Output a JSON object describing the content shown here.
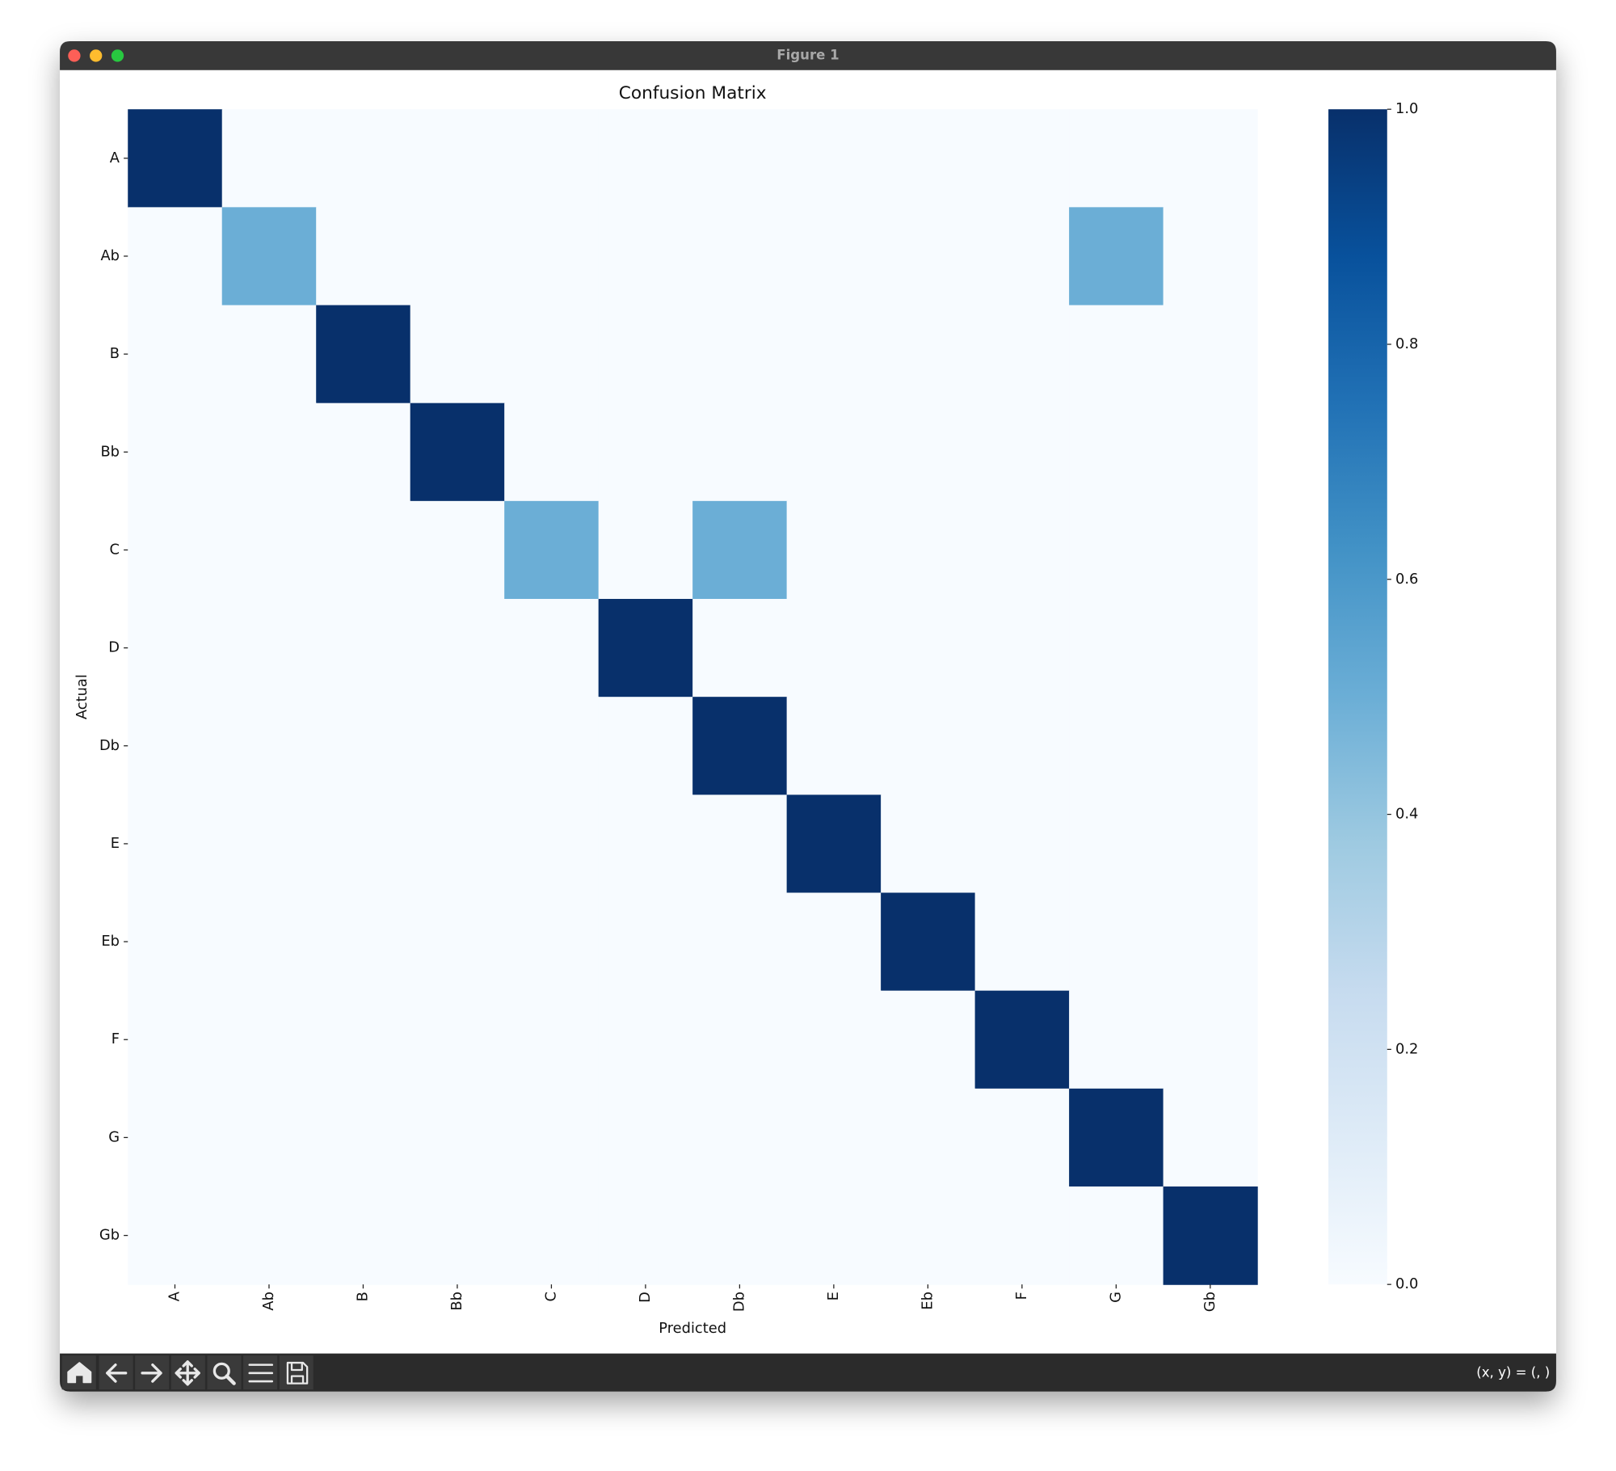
{
  "window": {
    "title": "Figure 1",
    "status": "(x, y) = (, )"
  },
  "chart_data": {
    "type": "heatmap",
    "title": "Confusion Matrix",
    "xlabel": "Predicted",
    "ylabel": "Actual",
    "x": [
      "A",
      "Ab",
      "B",
      "Bb",
      "C",
      "D",
      "Db",
      "E",
      "Eb",
      "F",
      "G",
      "Gb"
    ],
    "y": [
      "A",
      "Ab",
      "B",
      "Bb",
      "C",
      "D",
      "Db",
      "E",
      "Eb",
      "F",
      "G",
      "Gb"
    ],
    "values": [
      [
        1,
        0,
        0,
        0,
        0,
        0,
        0,
        0,
        0,
        0,
        0,
        0
      ],
      [
        0,
        0.5,
        0,
        0,
        0,
        0,
        0,
        0,
        0,
        0,
        0.5,
        0
      ],
      [
        0,
        0,
        1,
        0,
        0,
        0,
        0,
        0,
        0,
        0,
        0,
        0
      ],
      [
        0,
        0,
        0,
        1,
        0,
        0,
        0,
        0,
        0,
        0,
        0,
        0
      ],
      [
        0,
        0,
        0,
        0,
        0.5,
        0,
        0.5,
        0,
        0,
        0,
        0,
        0
      ],
      [
        0,
        0,
        0,
        0,
        0,
        1,
        0,
        0,
        0,
        0,
        0,
        0
      ],
      [
        0,
        0,
        0,
        0,
        0,
        0,
        1,
        0,
        0,
        0,
        0,
        0
      ],
      [
        0,
        0,
        0,
        0,
        0,
        0,
        0,
        1,
        0,
        0,
        0,
        0
      ],
      [
        0,
        0,
        0,
        0,
        0,
        0,
        0,
        0,
        1,
        0,
        0,
        0
      ],
      [
        0,
        0,
        0,
        0,
        0,
        0,
        0,
        0,
        0,
        1,
        0,
        0
      ],
      [
        0,
        0,
        0,
        0,
        0,
        0,
        0,
        0,
        0,
        0,
        1,
        0
      ],
      [
        0,
        0,
        0,
        0,
        0,
        0,
        0,
        0,
        0,
        0,
        0,
        1
      ]
    ],
    "colormap": "Blues",
    "clim": [
      0,
      1
    ],
    "cticks": [
      {
        "value": 0,
        "label": "0.0"
      },
      {
        "value": 0.2,
        "label": "0.2"
      },
      {
        "value": 0.4,
        "label": "0.4"
      },
      {
        "value": 0.6,
        "label": "0.6"
      },
      {
        "value": 0.8,
        "label": "0.8"
      },
      {
        "value": 1,
        "label": "1.0"
      }
    ]
  }
}
